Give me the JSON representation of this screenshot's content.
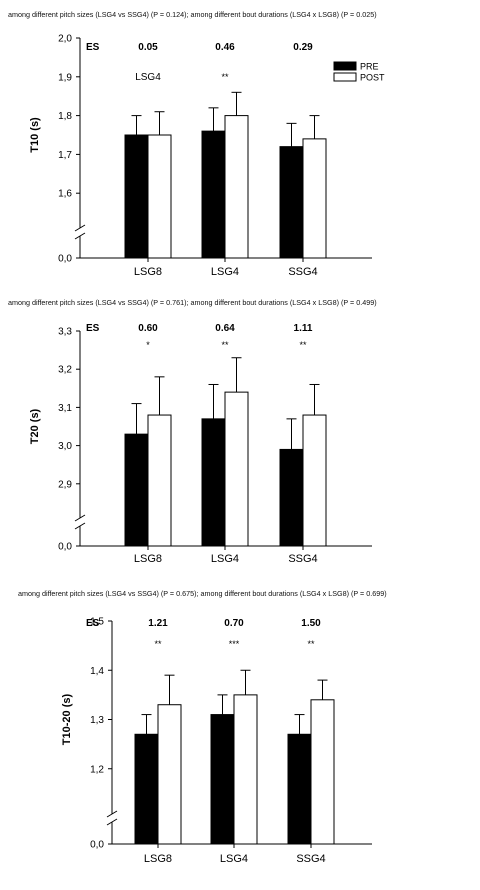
{
  "chart_data": [
    {
      "type": "bar",
      "title": "among different pitch sizes (LSG4 vs SSG4) (P = 0.124); among different bout durations (LSG4 x LSG8) (P = 0.025)",
      "ylabel": "T10 (s)",
      "ylim": [
        1.5,
        2.0
      ],
      "axis_break": true,
      "yticks": [
        "0,0",
        "1,6",
        "1,7",
        "1,8",
        "1,9",
        "2,0"
      ],
      "categories": [
        "LSG8",
        "LSG4",
        "SSG4"
      ],
      "series": [
        {
          "name": "PRE",
          "color": "#000000",
          "values": [
            1.75,
            1.76,
            1.72
          ],
          "sd": [
            0.05,
            0.06,
            0.06
          ]
        },
        {
          "name": "POST",
          "color": "#ffffff",
          "values": [
            1.75,
            1.8,
            1.74
          ],
          "sd": [
            0.06,
            0.06,
            0.06
          ]
        }
      ],
      "es_label": "ES",
      "es_values": [
        "0.05",
        "0.46",
        "0.29"
      ],
      "annotations": [
        "LSG4",
        "**",
        ""
      ],
      "legend_position": "top-right"
    },
    {
      "type": "bar",
      "title": "among different pitch sizes (LSG4 vs SSG4) (P = 0.761); among different bout durations (LSG4 x LSG8) (P = 0.499)",
      "ylabel": "T20 (s)",
      "ylim": [
        2.8,
        3.3
      ],
      "axis_break": true,
      "yticks": [
        "0,0",
        "2,9",
        "3,0",
        "3,1",
        "3,2",
        "3,3"
      ],
      "categories": [
        "LSG8",
        "LSG4",
        "SSG4"
      ],
      "series": [
        {
          "name": "PRE",
          "color": "#000000",
          "values": [
            3.03,
            3.07,
            2.99
          ],
          "sd": [
            0.08,
            0.09,
            0.08
          ]
        },
        {
          "name": "POST",
          "color": "#ffffff",
          "values": [
            3.08,
            3.14,
            3.08
          ],
          "sd": [
            0.1,
            0.09,
            0.08
          ]
        }
      ],
      "es_label": "ES",
      "es_values": [
        "0.60",
        "0.64",
        "1.11"
      ],
      "annotations": [
        "*",
        "**",
        "**"
      ]
    },
    {
      "type": "bar",
      "title": "among different pitch sizes (LSG4 vs SSG4) (P = 0.675); among different bout durations (LSG4 x LSG8) (P = 0.699)",
      "ylabel": "T10-20 (s)",
      "ylim": [
        1.1,
        1.5
      ],
      "axis_break": true,
      "yticks": [
        "0,0",
        "1,2",
        "1,3",
        "1,4",
        "1,5"
      ],
      "categories": [
        "LSG8",
        "LSG4",
        "SSG4"
      ],
      "series": [
        {
          "name": "PRE",
          "color": "#000000",
          "values": [
            1.27,
            1.31,
            1.27
          ],
          "sd": [
            0.04,
            0.04,
            0.04
          ]
        },
        {
          "name": "POST",
          "color": "#ffffff",
          "values": [
            1.33,
            1.35,
            1.34
          ],
          "sd": [
            0.06,
            0.05,
            0.04
          ]
        }
      ],
      "es_label": "ES",
      "es_values": [
        "1.21",
        "0.70",
        "1.50"
      ],
      "annotations": [
        "**",
        "***",
        "**"
      ]
    }
  ]
}
